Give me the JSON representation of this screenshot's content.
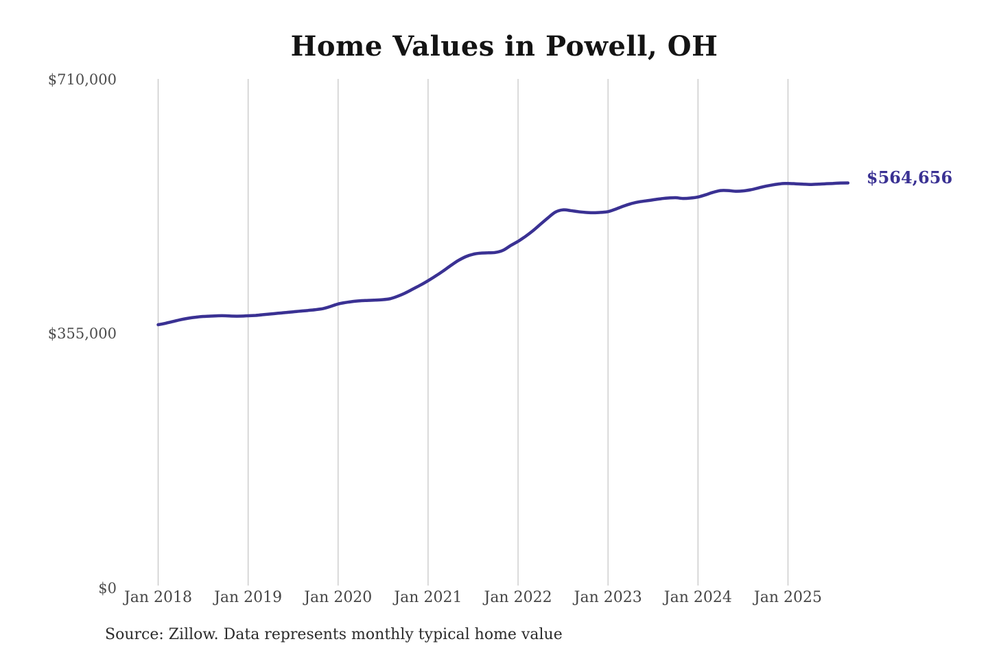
{
  "chart_data": {
    "type": "line",
    "title": "Home Values in Powell, OH",
    "y_tick_labels": [
      "$710,000",
      "$355,000",
      "$0"
    ],
    "y_tick_values": [
      710000,
      355000,
      0
    ],
    "ylim": [
      0,
      710000
    ],
    "x_tick_labels": [
      "Jan 2018",
      "Jan 2019",
      "Jan 2020",
      "Jan 2021",
      "Jan 2022",
      "Jan 2023",
      "Jan 2024",
      "Jan 2025"
    ],
    "grid": "vertical-only",
    "legend": "none",
    "end_label": "$564,656",
    "line_color": "#3a3193",
    "gridline_color": "#c7c7c7",
    "source_note": "Source: Zillow. Data represents monthly typical home value",
    "series": [
      {
        "name": "Monthly typical home value",
        "start_month": "Jan 2018",
        "frequency": "monthly",
        "values": [
          366500,
          368500,
          371000,
          373500,
          375500,
          377000,
          378000,
          378500,
          379000,
          379000,
          378500,
          378500,
          379000,
          379500,
          380500,
          381500,
          382500,
          383500,
          384500,
          385500,
          386500,
          387500,
          389000,
          392000,
          395500,
          397500,
          399000,
          400000,
          400500,
          401000,
          401500,
          403000,
          406500,
          411000,
          416500,
          422000,
          428000,
          434500,
          441500,
          449000,
          456000,
          461500,
          465000,
          466500,
          467000,
          467500,
          470500,
          477000,
          483000,
          490000,
          498000,
          507000,
          516000,
          524000,
          527000,
          526000,
          524500,
          523500,
          523000,
          523500,
          524500,
          528000,
          532000,
          535500,
          538000,
          539500,
          541000,
          542500,
          543500,
          544000,
          543000,
          543500,
          545000,
          548000,
          551500,
          554000,
          554000,
          553000,
          553500,
          555000,
          557500,
          560000,
          562000,
          563500,
          564000,
          563500,
          563000,
          562500,
          563000,
          563500,
          564000,
          564500,
          564656
        ]
      }
    ]
  }
}
